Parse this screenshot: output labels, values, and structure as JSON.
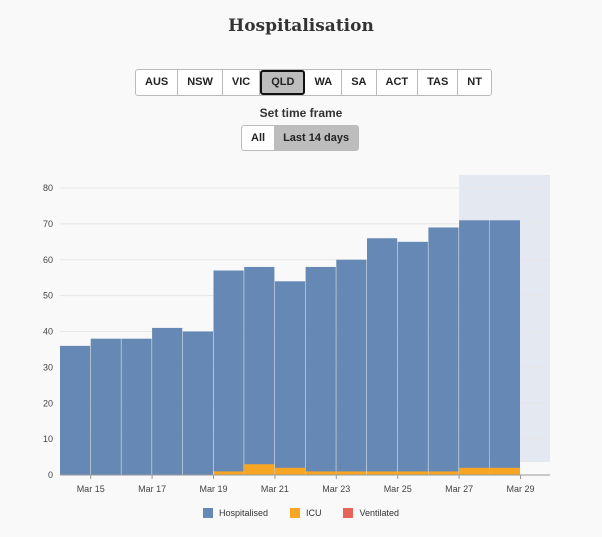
{
  "title": "Hospitalisation",
  "regions": [
    {
      "label": "AUS",
      "active": false
    },
    {
      "label": "NSW",
      "active": false
    },
    {
      "label": "VIC",
      "active": false
    },
    {
      "label": "QLD",
      "active": true
    },
    {
      "label": "WA",
      "active": false
    },
    {
      "label": "SA",
      "active": false
    },
    {
      "label": "ACT",
      "active": false
    },
    {
      "label": "TAS",
      "active": false
    },
    {
      "label": "NT",
      "active": false
    }
  ],
  "timeframe": {
    "label": "Set time frame",
    "options": [
      {
        "label": "All",
        "active": false
      },
      {
        "label": "Last 14 days",
        "active": true
      }
    ]
  },
  "colors": {
    "hospitalised": "#6589b4",
    "icu": "#f6a623",
    "ventilated": "#e8635a",
    "projection": "#e4e8f1"
  },
  "chart_data": {
    "type": "bar",
    "stacked": true,
    "categories": [
      "Mar 14",
      "Mar 15",
      "Mar 16",
      "Mar 17",
      "Mar 18",
      "Mar 19",
      "Mar 20",
      "Mar 21",
      "Mar 22",
      "Mar 23",
      "Mar 24",
      "Mar 25",
      "Mar 26",
      "Mar 27",
      "Mar 28"
    ],
    "series": [
      {
        "name": "Hospitalised",
        "values": [
          36,
          38,
          38,
          41,
          40,
          56,
          55,
          52,
          57,
          59,
          65,
          64,
          68,
          69,
          69
        ]
      },
      {
        "name": "ICU",
        "values": [
          0,
          0,
          0,
          0,
          0,
          1,
          3,
          2,
          1,
          1,
          1,
          1,
          1,
          2,
          2
        ]
      },
      {
        "name": "Ventilated",
        "values": [
          0,
          0,
          0,
          0,
          0,
          0,
          0,
          0,
          0,
          0,
          0,
          0,
          0,
          0,
          0
        ]
      }
    ],
    "x_tick_labels": [
      "Mar 15",
      "Mar 17",
      "Mar 19",
      "Mar 21",
      "Mar 23",
      "Mar 25",
      "Mar 27",
      "Mar 29"
    ],
    "y_ticks": [
      0,
      10,
      20,
      30,
      40,
      50,
      60,
      70,
      80
    ],
    "ylim": [
      0,
      80
    ],
    "projection_shading": {
      "from": "Mar 28",
      "to": "Mar 30"
    },
    "grid": true,
    "legend_position": "bottom"
  }
}
